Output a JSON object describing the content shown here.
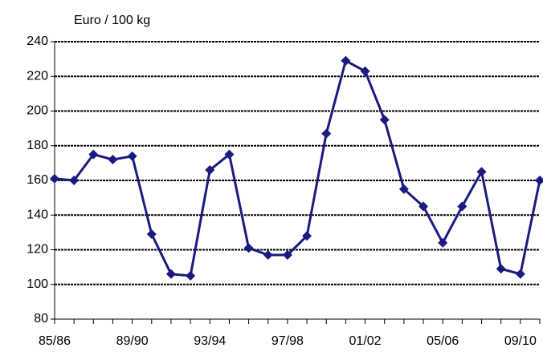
{
  "chart_data": {
    "type": "line",
    "y_axis_label": "Euro / 100 kg",
    "categories": [
      "85/86",
      null,
      null,
      null,
      "89/90",
      null,
      null,
      null,
      "93/94",
      null,
      null,
      null,
      "97/98",
      null,
      null,
      null,
      "01/02",
      null,
      null,
      null,
      "05/06",
      null,
      null,
      null,
      "09/10",
      null
    ],
    "series": [
      {
        "name": null,
        "color": "#1a1a80",
        "values": [
          161,
          160,
          175,
          172,
          174,
          129,
          106,
          105,
          166,
          175,
          121,
          117,
          117,
          128,
          187,
          229,
          223,
          195,
          155,
          145,
          124,
          145,
          165,
          109,
          106,
          160
        ]
      }
    ],
    "ylim": [
      80,
      240
    ],
    "yticks": [
      80,
      100,
      120,
      140,
      160,
      180,
      200,
      220,
      240
    ],
    "grid": true
  }
}
